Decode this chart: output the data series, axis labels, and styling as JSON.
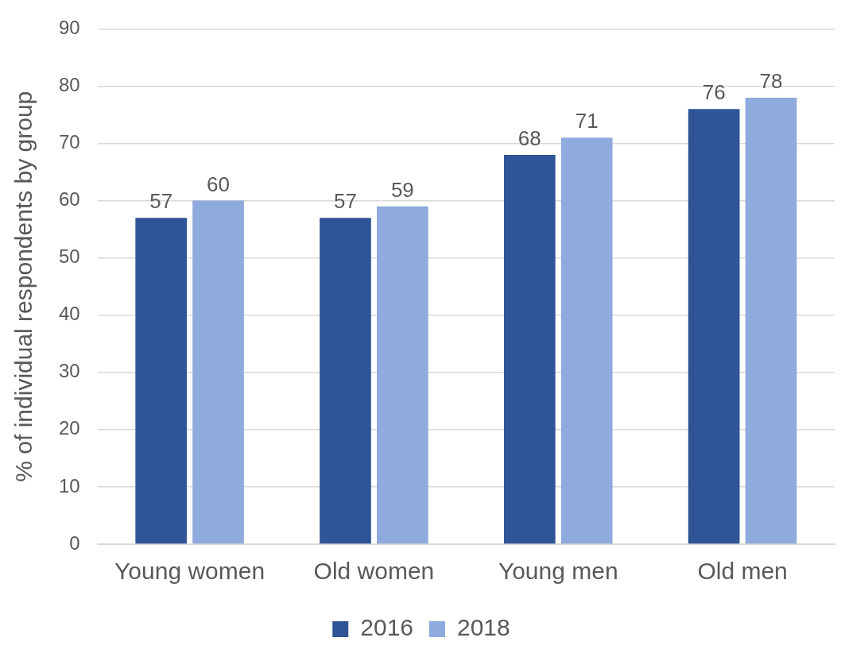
{
  "chart_data": {
    "type": "bar",
    "ylabel": "% of individual respondents by group",
    "categories": [
      "Young women",
      "Old women",
      "Young men",
      "Old men"
    ],
    "series": [
      {
        "name": "2016",
        "color": "#2f5597",
        "values": [
          57,
          57,
          68,
          76
        ]
      },
      {
        "name": "2018",
        "color": "#8faadc",
        "values": [
          60,
          59,
          71,
          78
        ]
      }
    ],
    "ylim": [
      0,
      90
    ],
    "yticks": [
      0,
      10,
      20,
      30,
      40,
      50,
      60,
      70,
      80,
      90
    ],
    "grid": "y",
    "legend": "bottom",
    "data_labels": true
  }
}
